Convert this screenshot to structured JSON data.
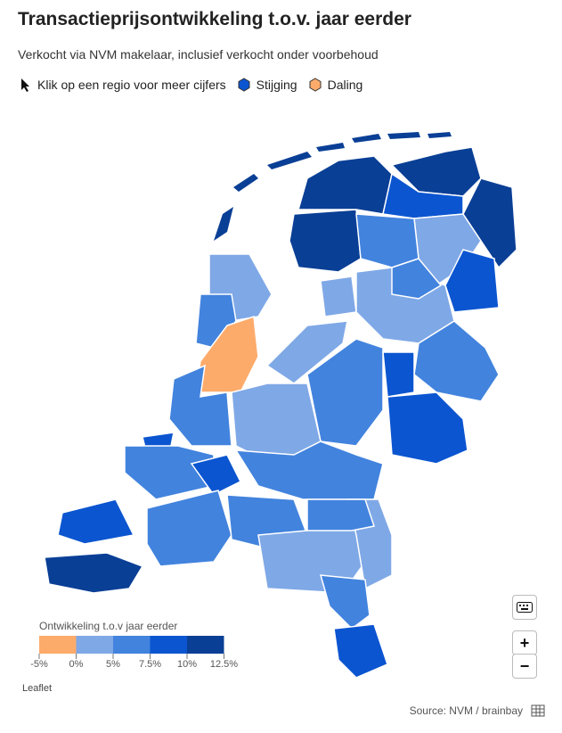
{
  "header": {
    "title": "Transactieprijsontwikkeling t.o.v. jaar eerder",
    "subtitle": "Verkocht via NVM makelaar, inclusief verkocht onder voorbehoud"
  },
  "key": {
    "hint": "Klik op een regio voor meer cijfers",
    "rise": {
      "label": "Stijging",
      "color": "#0b55d0"
    },
    "fall": {
      "label": "Daling",
      "color": "#fdab6b"
    }
  },
  "map": {
    "legend": {
      "title": "Ontwikkeling t.o.v jaar eerder",
      "colors": [
        "#fdab6b",
        "#7fa8e6",
        "#4283de",
        "#0b55d0",
        "#0a3f96"
      ],
      "ticks": [
        {
          "value": -5,
          "label": "-5%"
        },
        {
          "value": 0,
          "label": "0%"
        },
        {
          "value": 5,
          "label": "5%"
        },
        {
          "value": 7.5,
          "label": "7.5%"
        },
        {
          "value": 10,
          "label": "10%"
        },
        {
          "value": 12.5,
          "label": "12.5%"
        }
      ]
    },
    "region_colors": [
      "#0a3f96",
      "#0a3f96",
      "#0a3f96",
      "#0b55d0",
      "#7fa8e6",
      "#0a3f96",
      "#4283de",
      "#0b55d0",
      "#7fa8e6",
      "#7fa8e6",
      "#4283de",
      "#7fa8e6",
      "#4283de",
      "#4283de",
      "#0b55d0",
      "#0b55d0",
      "#7fa8e6",
      "#4283de",
      "#fdab6b",
      "#7fa8e6",
      "#4283de",
      "#0b55d0",
      "#4283de",
      "#4283de",
      "#0b55d0",
      "#0b55d0",
      "#0a3f96",
      "#4283de",
      "#4283de",
      "#7fa8e6",
      "#7fa8e6",
      "#4283de",
      "#4283de",
      "#0b55d0"
    ],
    "island_color": "#0a3f96",
    "attribution": "Leaflet",
    "zoom_in": "+",
    "zoom_out": "−"
  },
  "footer": {
    "source": "Source: NVM / brainbay"
  }
}
